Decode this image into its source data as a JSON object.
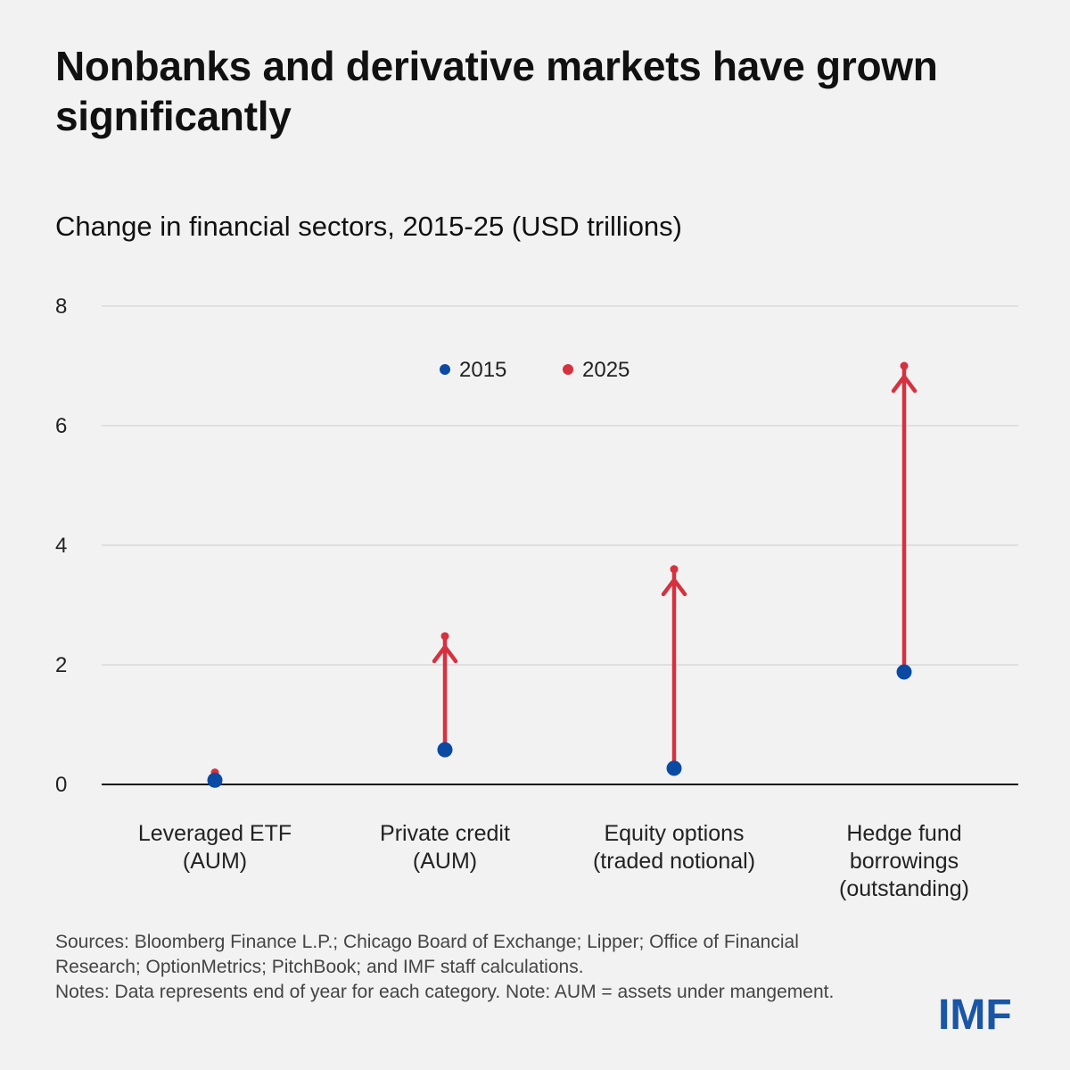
{
  "title": "Nonbanks and derivative markets have grown significantly",
  "subtitle": "Change in financial sectors, 2015-25 (USD trillions)",
  "colors": {
    "y2015": "#0b4aa2",
    "y2025": "#d6313f",
    "grid": "#d4d4d6",
    "axis": "#111111"
  },
  "chart_data": {
    "type": "scatter",
    "title": "Change in financial sectors, 2015-25 (USD trillions)",
    "xlabel": "",
    "ylabel": "",
    "ylim": [
      0,
      8
    ],
    "yticks": [
      0,
      2,
      4,
      6,
      8
    ],
    "grid": true,
    "legend_position": "top-center",
    "categories": [
      [
        "Leveraged ETF",
        "(AUM)"
      ],
      [
        "Private credit",
        "(AUM)"
      ],
      [
        "Equity options",
        "(traded notional)"
      ],
      [
        "Hedge fund",
        "borrowings",
        "(outstanding)"
      ]
    ],
    "series": [
      {
        "name": "2015",
        "values": [
          0.07,
          0.58,
          0.27,
          1.88
        ]
      },
      {
        "name": "2025",
        "values": [
          0.2,
          2.48,
          3.6,
          7.0
        ]
      }
    ]
  },
  "footer": {
    "sources": "Sources: Bloomberg Finance L.P.; Chicago Board of Exchange; Lipper; Office of Financial Research; OptionMetrics; PitchBook; and IMF staff calculations.",
    "notes": "Notes: Data represents end of year for each category. Note: AUM = assets under mangement."
  },
  "logo": "IMF"
}
